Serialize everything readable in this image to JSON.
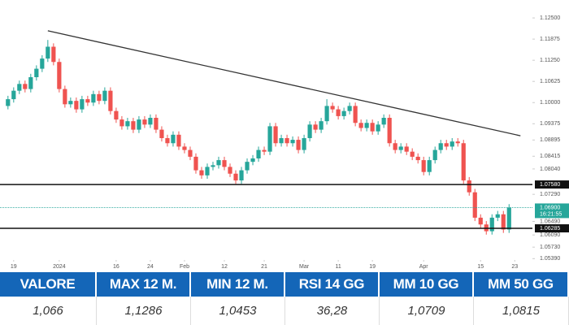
{
  "chart_data": {
    "type": "candlestick",
    "open": [
      1.099,
      1.101,
      1.1035,
      1.1055,
      1.104,
      1.1075,
      1.11,
      1.113,
      1.1165,
      1.112,
      1.104,
      1.0995,
      1.1005,
      1.098,
      1.101,
      1.1,
      1.1025,
      1.1005,
      1.1035,
      1.0975,
      1.095,
      1.093,
      1.0945,
      1.092,
      1.095,
      1.0935,
      1.0955,
      1.092,
      1.0895,
      1.088,
      1.0905,
      1.087,
      1.086,
      1.084,
      1.08,
      1.0785,
      1.081,
      1.0815,
      1.083,
      1.081,
      1.079,
      1.077,
      1.08,
      1.0825,
      1.0835,
      1.086,
      1.0855,
      1.093,
      1.088,
      1.0895,
      1.088,
      1.089,
      1.086,
      1.0895,
      1.0935,
      1.092,
      1.0945,
      1.099,
      1.098,
      1.096,
      1.0975,
      1.099,
      1.094,
      1.0925,
      1.094,
      1.0915,
      1.0935,
      1.0955,
      1.088,
      1.086,
      1.087,
      1.0855,
      1.084,
      1.083,
      1.0795,
      1.083,
      1.086,
      1.088,
      1.087,
      1.0885,
      1.088,
      1.077,
      1.0735,
      1.066,
      1.064,
      1.062,
      1.066,
      1.067,
      1.0625
    ],
    "high": [
      1.102,
      1.1045,
      1.1065,
      1.1065,
      1.1085,
      1.111,
      1.114,
      1.1185,
      1.1175,
      1.113,
      1.105,
      1.1015,
      1.1015,
      1.102,
      1.102,
      1.1035,
      1.1035,
      1.1045,
      1.1045,
      1.0985,
      1.096,
      1.0955,
      1.0955,
      1.096,
      1.096,
      1.0965,
      1.0965,
      1.093,
      1.0905,
      1.0915,
      1.0915,
      1.088,
      1.087,
      1.085,
      1.081,
      1.082,
      1.0825,
      1.084,
      1.084,
      1.082,
      1.08,
      1.081,
      1.0835,
      1.0845,
      1.087,
      1.087,
      1.094,
      1.094,
      1.0905,
      1.0905,
      1.09,
      1.09,
      1.0905,
      1.0945,
      1.0945,
      1.0955,
      1.101,
      1.1,
      1.099,
      1.0985,
      1.1,
      1.1,
      1.095,
      1.095,
      1.095,
      1.0945,
      1.0965,
      1.0965,
      1.089,
      1.088,
      1.088,
      1.0865,
      1.085,
      1.084,
      1.084,
      1.087,
      1.089,
      1.089,
      1.0895,
      1.0895,
      1.089,
      1.078,
      1.0745,
      1.067,
      1.065,
      1.067,
      1.068,
      1.068,
      1.07
    ],
    "low": [
      1.098,
      1.1,
      1.1025,
      1.103,
      1.103,
      1.1065,
      1.109,
      1.112,
      1.111,
      1.103,
      1.0985,
      1.0985,
      1.097,
      1.097,
      1.099,
      1.099,
      1.0995,
      1.0995,
      1.0965,
      1.094,
      1.092,
      1.092,
      1.091,
      1.091,
      1.0925,
      1.0925,
      1.091,
      1.0885,
      1.087,
      1.087,
      1.086,
      1.085,
      1.083,
      1.079,
      1.0775,
      1.0775,
      1.08,
      1.0805,
      1.08,
      1.078,
      1.076,
      1.076,
      1.079,
      1.0815,
      1.0825,
      1.0845,
      1.0845,
      1.087,
      1.087,
      1.087,
      1.087,
      1.085,
      1.085,
      1.0885,
      1.091,
      1.091,
      1.0935,
      1.097,
      1.095,
      1.095,
      1.0965,
      1.093,
      1.0915,
      1.0915,
      1.0905,
      1.0905,
      1.0925,
      1.087,
      1.085,
      1.085,
      1.0845,
      1.083,
      1.082,
      1.0785,
      1.0785,
      1.082,
      1.085,
      1.086,
      1.086,
      1.087,
      1.076,
      1.0725,
      1.065,
      1.063,
      1.061,
      1.061,
      1.065,
      1.0615,
      1.0615
    ],
    "close": [
      1.101,
      1.1035,
      1.1055,
      1.104,
      1.1075,
      1.11,
      1.113,
      1.1165,
      1.112,
      1.104,
      1.0995,
      1.1005,
      1.098,
      1.101,
      1.1,
      1.1025,
      1.1005,
      1.1035,
      1.0975,
      1.095,
      1.093,
      1.0945,
      1.092,
      1.095,
      1.0935,
      1.0955,
      1.092,
      1.0895,
      1.088,
      1.0905,
      1.087,
      1.086,
      1.084,
      1.08,
      1.0785,
      1.081,
      1.0815,
      1.083,
      1.081,
      1.079,
      1.077,
      1.08,
      1.0825,
      1.0835,
      1.086,
      1.0855,
      1.093,
      1.088,
      1.0895,
      1.088,
      1.089,
      1.086,
      1.0895,
      1.0935,
      1.092,
      1.0945,
      1.099,
      1.098,
      1.096,
      1.0975,
      1.099,
      1.094,
      1.0925,
      1.094,
      1.0915,
      1.0935,
      1.0955,
      1.088,
      1.086,
      1.087,
      1.0855,
      1.084,
      1.083,
      1.0795,
      1.083,
      1.086,
      1.088,
      1.087,
      1.0885,
      1.088,
      1.077,
      1.0735,
      1.066,
      1.064,
      1.062,
      1.066,
      1.067,
      1.0625,
      1.069
    ],
    "up_color": "#26a69a",
    "down_color": "#ef5350",
    "xlim": [
      -1.4,
      92.1
    ],
    "xticks": [
      {
        "value": 1,
        "label": "19"
      },
      {
        "value": 9,
        "label": "2024"
      },
      {
        "value": 19,
        "label": "16"
      },
      {
        "value": 25,
        "label": "24"
      },
      {
        "value": 31,
        "label": "Feb"
      },
      {
        "value": 38,
        "label": "12"
      },
      {
        "value": 45,
        "label": "21"
      },
      {
        "value": 52,
        "label": "Mar"
      },
      {
        "value": 58,
        "label": "11"
      },
      {
        "value": 64,
        "label": "19"
      },
      {
        "value": 73,
        "label": "Apr"
      },
      {
        "value": 83,
        "label": "15"
      },
      {
        "value": 89,
        "label": "23"
      }
    ],
    "ylim": [
      1.0511,
      1.1303
    ],
    "yticks": [
      {
        "value": 1.125,
        "label": "1.12500"
      },
      {
        "value": 1.11875,
        "label": "1.11875"
      },
      {
        "value": 1.1125,
        "label": "1.11250"
      },
      {
        "value": 1.10625,
        "label": "1.10625"
      },
      {
        "value": 1.1,
        "label": "1.10000"
      },
      {
        "value": 1.09375,
        "label": "1.09375"
      },
      {
        "value": 1.08895,
        "label": "1.08895"
      },
      {
        "value": 1.08415,
        "label": "1.08415"
      },
      {
        "value": 1.0804,
        "label": "1.08040"
      },
      {
        "value": 1.0729,
        "label": "1.07290"
      },
      {
        "value": 1.0649,
        "label": "1.06490"
      },
      {
        "value": 1.0609,
        "label": "1.06090"
      },
      {
        "value": 1.0573,
        "label": "1.05730"
      },
      {
        "value": 1.0539,
        "label": "1.05390"
      }
    ],
    "levels": [
      {
        "value": 1.0758,
        "label": "1.07580"
      },
      {
        "value": 1.06285,
        "label": "1.06285"
      }
    ],
    "last_price": {
      "value": 1.069,
      "label": "1.06900",
      "time": "16:21:55"
    },
    "trendline": {
      "x": [
        7,
        90
      ],
      "y": [
        1.1212,
        1.0902
      ]
    }
  },
  "table": {
    "header": [
      "VALORE",
      "MAX 12 M.",
      "MIN 12 M.",
      "RSI 14 GG",
      "MM 10 GG",
      "MM 50 GG"
    ],
    "rows": [
      [
        "1,066",
        "1,1286",
        "1,0453",
        "36,28",
        "1,0709",
        "1,0815"
      ]
    ]
  }
}
